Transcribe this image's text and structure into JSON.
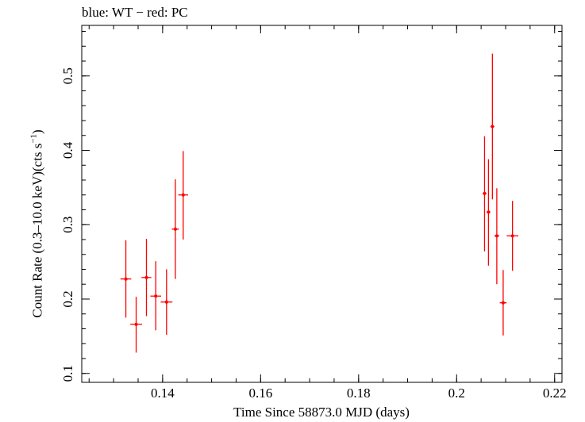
{
  "chart_data": {
    "type": "scatter",
    "title": "blue: WT − red: PC",
    "xlabel": "Time Since 58873.0 MJD (days)",
    "ylabel": {
      "prefix": "Count Rate (0.3–10.0 keV)(cts s",
      "sup": "−1",
      "suffix": ")"
    },
    "xlim": [
      0.1235,
      0.2215
    ],
    "ylim": [
      0.088,
      0.568
    ],
    "xticks": [
      0.14,
      0.16,
      0.18,
      0.2,
      0.22
    ],
    "xtick_labels": [
      "0.14",
      "0.16",
      "0.18",
      "0.2",
      "0.22"
    ],
    "yticks": [
      0.1,
      0.2,
      0.3,
      0.4,
      0.5
    ],
    "ytick_labels": [
      "0.1",
      "0.2",
      "0.3",
      "0.4",
      "0.5"
    ],
    "x_minor_step": 0.005,
    "y_minor_step": 0.02,
    "grid": false,
    "series": [
      {
        "color": "#ff0000",
        "points": [
          {
            "x": 0.1325,
            "xerr": 0.0011,
            "y": 0.227,
            "ylo": 0.175,
            "yhi": 0.279
          },
          {
            "x": 0.1346,
            "xerr": 0.0012,
            "y": 0.166,
            "ylo": 0.128,
            "yhi": 0.203
          },
          {
            "x": 0.1367,
            "xerr": 0.001,
            "y": 0.229,
            "ylo": 0.177,
            "yhi": 0.281
          },
          {
            "x": 0.1386,
            "xerr": 0.0011,
            "y": 0.204,
            "ylo": 0.158,
            "yhi": 0.251
          },
          {
            "x": 0.1408,
            "xerr": 0.0012,
            "y": 0.196,
            "ylo": 0.152,
            "yhi": 0.24
          },
          {
            "x": 0.1426,
            "xerr": 0.0007,
            "y": 0.294,
            "ylo": 0.227,
            "yhi": 0.361
          },
          {
            "x": 0.1442,
            "xerr": 0.001,
            "y": 0.34,
            "ylo": 0.28,
            "yhi": 0.399
          },
          {
            "x": 0.2057,
            "xerr": 0.0004,
            "y": 0.342,
            "ylo": 0.264,
            "yhi": 0.419
          },
          {
            "x": 0.2065,
            "xerr": 0.0004,
            "y": 0.317,
            "ylo": 0.245,
            "yhi": 0.388
          },
          {
            "x": 0.2073,
            "xerr": 0.0004,
            "y": 0.432,
            "ylo": 0.334,
            "yhi": 0.53
          },
          {
            "x": 0.2082,
            "xerr": 0.0005,
            "y": 0.285,
            "ylo": 0.22,
            "yhi": 0.349
          },
          {
            "x": 0.2095,
            "xerr": 0.0007,
            "y": 0.195,
            "ylo": 0.151,
            "yhi": 0.239
          },
          {
            "x": 0.2114,
            "xerr": 0.0012,
            "y": 0.285,
            "ylo": 0.238,
            "yhi": 0.332
          }
        ]
      }
    ]
  }
}
